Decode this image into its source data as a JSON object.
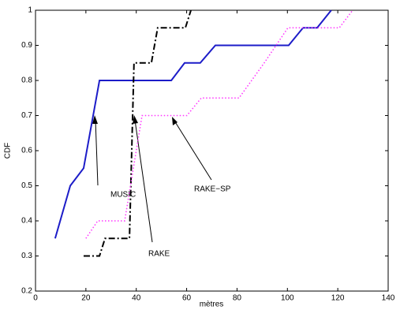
{
  "chart_data": {
    "type": "line",
    "x_label": "mètres",
    "y_label": "CDF",
    "xlim": [
      0,
      140
    ],
    "xticks": [
      0,
      20,
      40,
      60,
      80,
      100,
      120,
      140
    ],
    "ylim": [
      0.2,
      1
    ],
    "yticks": [
      0.2,
      0.3,
      0.4,
      0.5,
      0.6,
      0.7,
      0.8,
      0.9,
      1
    ],
    "grid": false,
    "annotations": [
      "MUSIC",
      "RAKE",
      "RAKE−SP"
    ],
    "series": [
      {
        "name": "MUSIC",
        "color": "#1c1cc8",
        "style": "solid",
        "x": [
          7.8,
          13.8,
          19.1,
          25.4,
          53.9,
          59.2,
          65.4,
          71.4,
          100.5,
          106.2,
          111.8,
          117.4
        ],
        "values": [
          0.35,
          0.5,
          0.55,
          0.8,
          0.8,
          0.85,
          0.85,
          0.9,
          0.9,
          0.95,
          0.95,
          1
        ]
      },
      {
        "name": "RAKE",
        "color": "#000000",
        "style": "dashdot",
        "x": [
          19.1,
          25.4,
          27.6,
          37.3,
          39.1,
          46,
          48.5,
          59.5,
          61.7
        ],
        "values": [
          0.3,
          0.3,
          0.35,
          0.35,
          0.85,
          0.85,
          0.95,
          0.95,
          1
        ]
      },
      {
        "name": "RAKE−SP",
        "color": "#ff33ff",
        "style": "dotted",
        "x": [
          20,
          24.7,
          35.4,
          42.3,
          60.1,
          65.8,
          80.8,
          90.8,
          95.5,
          100.2,
          120.6,
          125.9
        ],
        "values": [
          0.35,
          0.4,
          0.4,
          0.7,
          0.7,
          0.75,
          0.75,
          0.85,
          0.9,
          0.95,
          0.95,
          1
        ]
      }
    ]
  }
}
